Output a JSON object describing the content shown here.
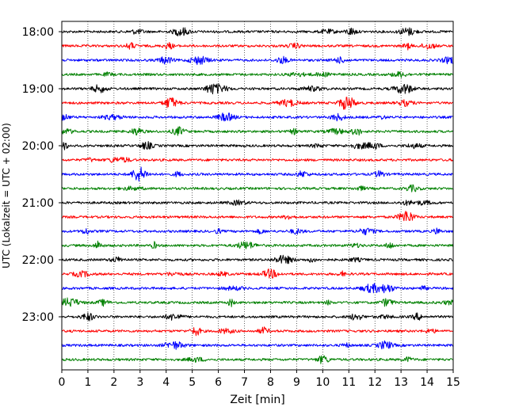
{
  "chart_data": {
    "type": "line",
    "title": "",
    "xlabel": "Zeit  [min]",
    "ylabel": "UTC (Lokalzeit = UTC + 02:00)",
    "xlim": [
      0,
      15
    ],
    "x_ticks": [
      0,
      1,
      2,
      3,
      4,
      5,
      6,
      7,
      8,
      9,
      10,
      11,
      12,
      13,
      14,
      15
    ],
    "y_ticks": [
      "18:00",
      "19:00",
      "20:00",
      "21:00",
      "22:00",
      "23:00"
    ],
    "trace_interval_minutes": 15,
    "grid": "vertical dotted at each minute",
    "colors_cycle": [
      "#000000",
      "#ff0000",
      "#0000ff",
      "#008000"
    ],
    "series": [
      {
        "start": "18:00",
        "color": "#000000"
      },
      {
        "start": "18:15",
        "color": "#ff0000"
      },
      {
        "start": "18:30",
        "color": "#0000ff"
      },
      {
        "start": "18:45",
        "color": "#008000"
      },
      {
        "start": "19:00",
        "color": "#000000"
      },
      {
        "start": "19:15",
        "color": "#ff0000"
      },
      {
        "start": "19:30",
        "color": "#0000ff"
      },
      {
        "start": "19:45",
        "color": "#008000"
      },
      {
        "start": "20:00",
        "color": "#000000"
      },
      {
        "start": "20:15",
        "color": "#ff0000"
      },
      {
        "start": "20:30",
        "color": "#0000ff"
      },
      {
        "start": "20:45",
        "color": "#008000"
      },
      {
        "start": "21:00",
        "color": "#000000"
      },
      {
        "start": "21:15",
        "color": "#ff0000"
      },
      {
        "start": "21:30",
        "color": "#0000ff"
      },
      {
        "start": "21:45",
        "color": "#008000"
      },
      {
        "start": "22:00",
        "color": "#000000"
      },
      {
        "start": "22:15",
        "color": "#ff0000"
      },
      {
        "start": "22:30",
        "color": "#0000ff"
      },
      {
        "start": "22:45",
        "color": "#008000"
      },
      {
        "start": "23:00",
        "color": "#000000"
      },
      {
        "start": "23:15",
        "color": "#ff0000"
      },
      {
        "start": "23:30",
        "color": "#0000ff"
      },
      {
        "start": "23:45",
        "color": "#008000"
      }
    ]
  }
}
